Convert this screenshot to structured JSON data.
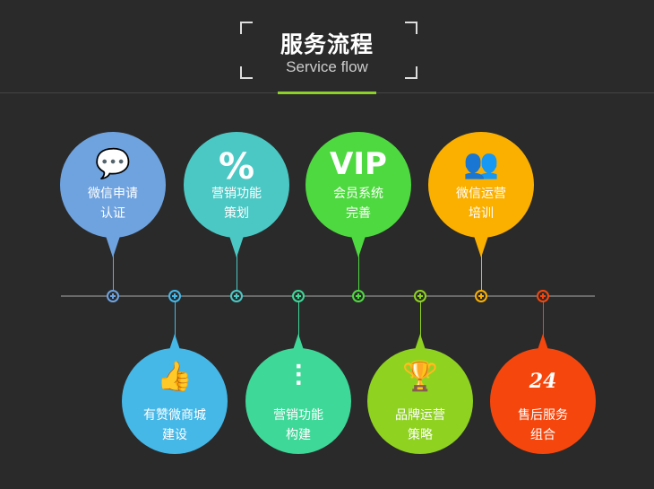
{
  "header": {
    "title": "服务流程",
    "subtitle": "Service flow",
    "accent": "#8ed02a"
  },
  "top": [
    {
      "line1": "微信申请",
      "line2": "认证",
      "icon": "wechat-chat-icon",
      "glyph": "💬",
      "color": "#6fa3e0"
    },
    {
      "line1": "营销功能",
      "line2": "策划",
      "icon": "percent-icon",
      "glyph": "%",
      "color": "#4cc8c4"
    },
    {
      "line1": "会员系统",
      "line2": "完善",
      "icon": "vip-icon",
      "glyph": "VIP",
      "color": "#4fd940"
    },
    {
      "line1": "微信运营",
      "line2": "培训",
      "icon": "people-icon",
      "glyph": "👥",
      "color": "#fbb000"
    }
  ],
  "bottom": [
    {
      "line1": "有赞微商城",
      "line2": "建设",
      "icon": "thumbs-up-icon",
      "glyph": "👍",
      "color": "#45b8e8"
    },
    {
      "line1": "营销功能",
      "line2": "构建",
      "icon": "sliders-icon",
      "glyph": "⫶",
      "color": "#3ed898"
    },
    {
      "line1": "品牌运营",
      "line2": "策略",
      "icon": "trophy-icon",
      "glyph": "🏆",
      "color": "#8fd320"
    },
    {
      "line1": "售后服务",
      "line2": "组合",
      "icon": "24h-phone-icon",
      "glyph": "24",
      "color": "#f5470d"
    }
  ]
}
